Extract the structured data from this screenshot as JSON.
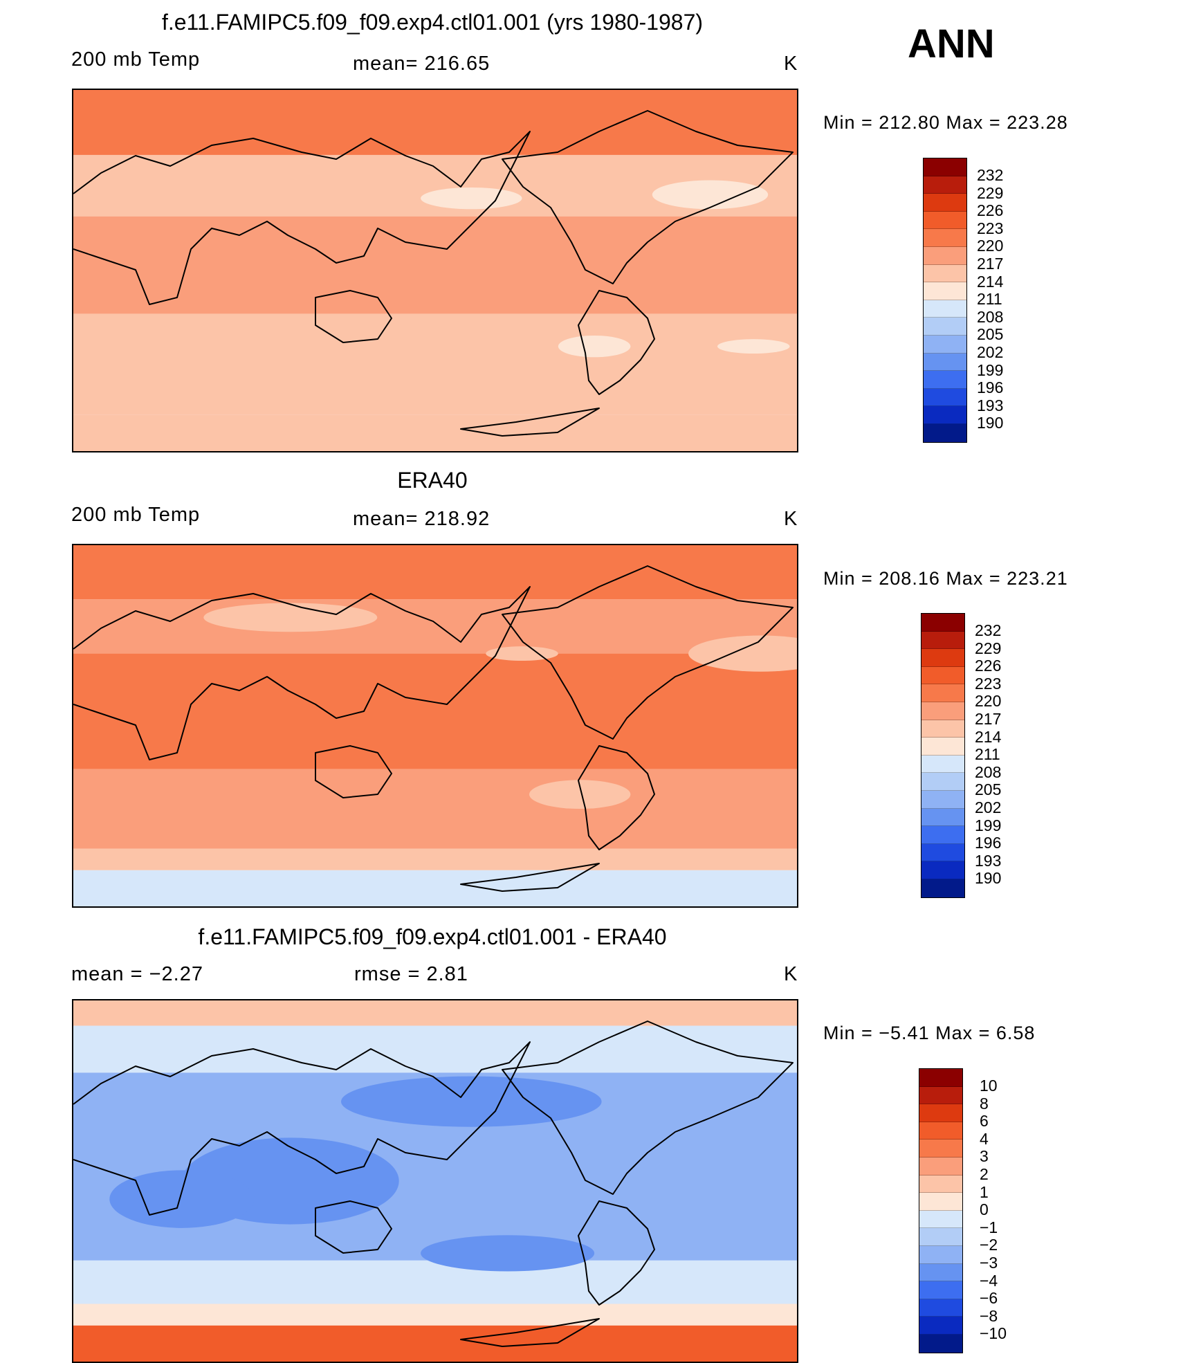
{
  "season": "ANN",
  "panels": [
    {
      "title": "f.e11.FAMIPC5.f09_f09.exp4.ctl01.001 (yrs 1980-1987)",
      "left_label": "200 mb Temp",
      "center_label": "mean= 216.65",
      "units": "K",
      "minmax": "Min = 212.80 Max = 223.28",
      "levels": [
        "232",
        "229",
        "226",
        "223",
        "220",
        "217",
        "214",
        "211",
        "208",
        "205",
        "202",
        "199",
        "196",
        "193",
        "190"
      ],
      "colors": [
        "#8b0000",
        "#b81d0c",
        "#dd3a10",
        "#f15c2a",
        "#f7794a",
        "#fa9e7b",
        "#fcc4a8",
        "#fde6d6",
        "#d6e7fa",
        "#b2cdf6",
        "#8fb2f4",
        "#6693f1",
        "#3d6ef0",
        "#1f4be0",
        "#0a2ac0",
        "#021a8a"
      ],
      "zones": [
        "#f7794a",
        "#fa9e7b",
        "#fcc4a8",
        "#fde6d6"
      ]
    },
    {
      "title": "ERA40",
      "left_label": "200 mb Temp",
      "center_label": "mean= 218.92",
      "units": "K",
      "minmax": "Min = 208.16 Max = 223.21",
      "levels": [
        "232",
        "229",
        "226",
        "223",
        "220",
        "217",
        "214",
        "211",
        "208",
        "205",
        "202",
        "199",
        "196",
        "193",
        "190"
      ],
      "colors": [
        "#8b0000",
        "#b81d0c",
        "#dd3a10",
        "#f15c2a",
        "#f7794a",
        "#fa9e7b",
        "#fcc4a8",
        "#fde6d6",
        "#d6e7fa",
        "#b2cdf6",
        "#8fb2f4",
        "#6693f1",
        "#3d6ef0",
        "#1f4be0",
        "#0a2ac0",
        "#021a8a"
      ],
      "zones": [
        "#f7794a",
        "#fa9e7b",
        "#fcc4a8",
        "#d6e7fa"
      ]
    },
    {
      "title": "f.e11.FAMIPC5.f09_f09.exp4.ctl01.001 - ERA40",
      "left_label": "mean =    −2.27",
      "center_label": "rmse =     2.81",
      "units": "K",
      "minmax": "Min =   −5.41 Max =     6.58",
      "levels": [
        "10",
        "8",
        "6",
        "4",
        "3",
        "2",
        "1",
        "0",
        "−1",
        "−2",
        "−3",
        "−4",
        "−6",
        "−8",
        "−10"
      ],
      "colors": [
        "#8b0000",
        "#b81d0c",
        "#dd3a10",
        "#f15c2a",
        "#f7794a",
        "#fa9e7b",
        "#fcc4a8",
        "#fde6d6",
        "#d6e7fa",
        "#b2cdf6",
        "#8fb2f4",
        "#6693f1",
        "#3d6ef0",
        "#1f4be0",
        "#0a2ac0",
        "#021a8a"
      ],
      "zones": [
        "#fcc4a8",
        "#d6e7fa",
        "#8fb2f4",
        "#6693f1"
      ]
    }
  ]
}
